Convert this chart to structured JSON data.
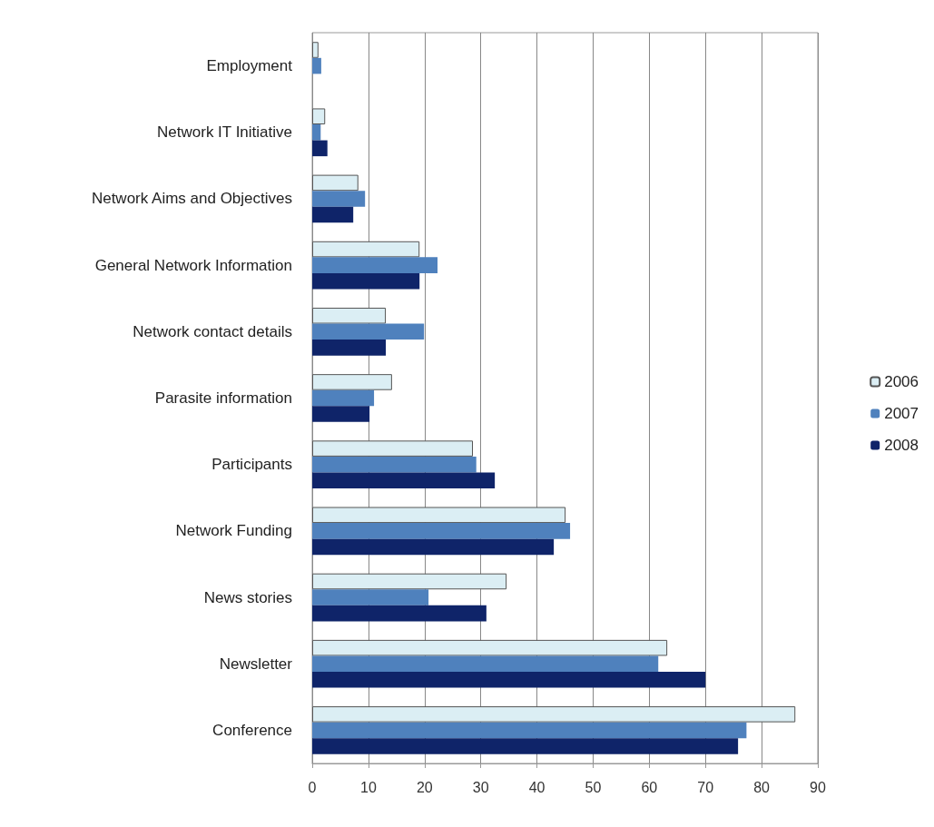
{
  "chart_data": {
    "type": "bar",
    "orientation": "horizontal",
    "categories": [
      "Employment",
      "Network IT Initiative",
      "Network Aims and Objectives",
      "General Network Information",
      "Network contact details",
      "Parasite information",
      "Participants",
      "Network Funding",
      "News stories",
      "Newsletter",
      "Conference"
    ],
    "series": [
      {
        "name": "2006",
        "color": "#dbeef4",
        "values": [
          1.1,
          2.3,
          8.2,
          19.1,
          13.1,
          14.2,
          28.6,
          45.1,
          34.6,
          63.2,
          86
        ]
      },
      {
        "name": "2007",
        "color": "#4f81bd",
        "values": [
          1.6,
          1.5,
          9.4,
          22.3,
          19.9,
          11,
          29.2,
          45.9,
          20.7,
          61.6,
          77.3
        ]
      },
      {
        "name": "2008",
        "color": "#0f2469",
        "values": [
          0,
          2.7,
          7.3,
          19.1,
          13.1,
          10.2,
          32.5,
          43,
          31,
          70,
          75.8
        ]
      }
    ],
    "xlim": [
      0,
      90
    ],
    "xticks": [
      0,
      10,
      20,
      30,
      40,
      50,
      60,
      70,
      80,
      90
    ],
    "grid": "x",
    "legend": "right"
  }
}
